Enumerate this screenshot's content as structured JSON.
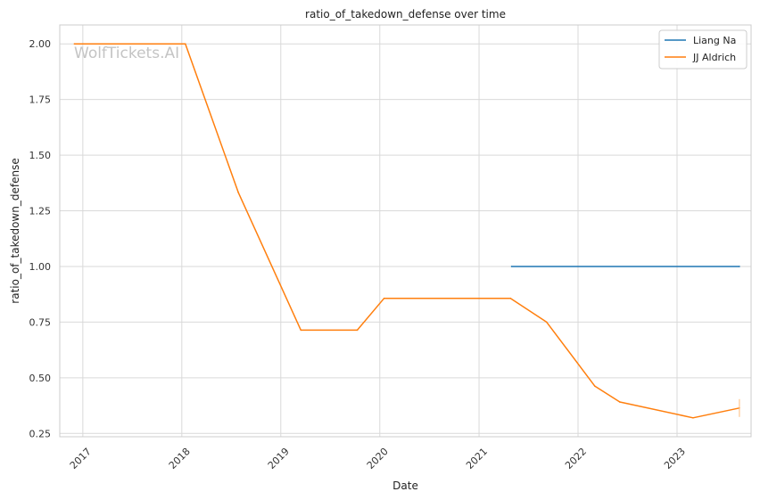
{
  "chart_data": {
    "type": "line",
    "title": "ratio_of_takedown_defense over time",
    "xlabel": "Date",
    "ylabel": "ratio_of_takedown_defense",
    "watermark": "WolfTickets.AI",
    "x_ticks": [
      "2017",
      "2018",
      "2019",
      "2020",
      "2021",
      "2022",
      "2023"
    ],
    "y_ticks": [
      "0.25",
      "0.50",
      "0.75",
      "1.00",
      "1.25",
      "1.50",
      "1.75",
      "2.00"
    ],
    "xlim": [
      "2016-10-08",
      "2023-10-01"
    ],
    "ylim": [
      0.235,
      2.085
    ],
    "grid": true,
    "legend_position": "top-right",
    "series": [
      {
        "name": "Liang Na",
        "color": "#1f77b4",
        "points": [
          {
            "x": "2021-05-01",
            "y": 1.0
          },
          {
            "x": "2023-08-19",
            "y": 1.0
          }
        ]
      },
      {
        "name": "JJ Aldrich",
        "color": "#ff7f0e",
        "points": [
          {
            "x": "2016-12-01",
            "y": 2.0
          },
          {
            "x": "2018-01-14",
            "y": 2.0
          },
          {
            "x": "2018-07-28",
            "y": 1.333
          },
          {
            "x": "2019-03-16",
            "y": 0.714
          },
          {
            "x": "2019-10-10",
            "y": 0.714
          },
          {
            "x": "2020-01-17",
            "y": 0.857
          },
          {
            "x": "2021-04-27",
            "y": 0.857
          },
          {
            "x": "2021-09-07",
            "y": 0.75
          },
          {
            "x": "2022-03-04",
            "y": 0.462
          },
          {
            "x": "2022-06-04",
            "y": 0.391
          },
          {
            "x": "2023-03-01",
            "y": 0.32
          },
          {
            "x": "2023-08-19",
            "y": 0.364
          }
        ]
      }
    ]
  }
}
